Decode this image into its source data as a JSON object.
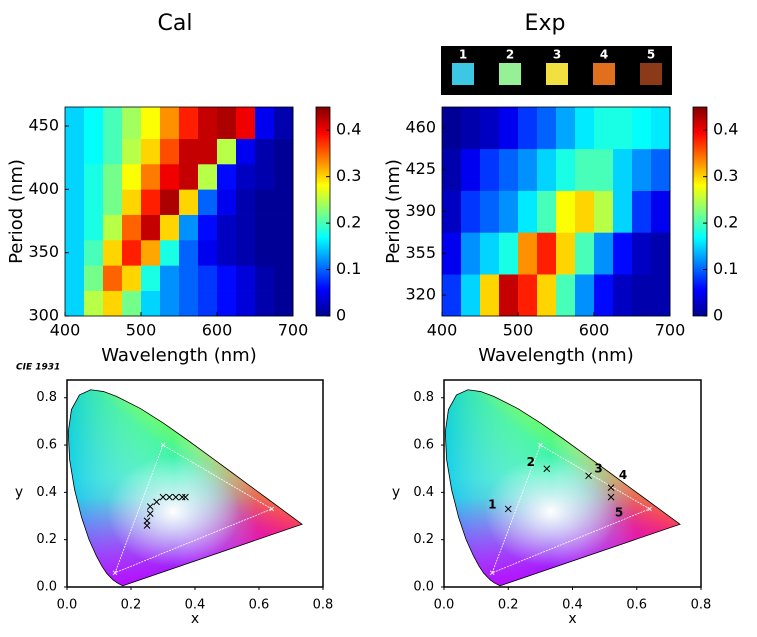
{
  "chart_data": [
    {
      "type": "heatmap",
      "title": "Cal",
      "xlabel": "Wavelength (nm)",
      "ylabel": "Period (nm)",
      "x_edges": [
        400,
        425,
        450,
        475,
        500,
        525,
        550,
        575,
        600,
        625,
        650,
        675,
        700
      ],
      "y_edges": [
        300,
        320,
        340,
        360,
        380,
        400,
        420,
        440,
        465
      ],
      "values": [
        [
          0.15,
          0.25,
          0.3,
          0.22,
          0.15,
          0.12,
          0.1,
          0.08,
          0.06,
          0.04,
          0.02,
          0.01
        ],
        [
          0.15,
          0.22,
          0.35,
          0.3,
          0.18,
          0.12,
          0.1,
          0.08,
          0.06,
          0.04,
          0.02,
          0.01
        ],
        [
          0.15,
          0.2,
          0.3,
          0.38,
          0.32,
          0.18,
          0.1,
          0.05,
          0.03,
          0.02,
          0.01,
          0.01
        ],
        [
          0.15,
          0.18,
          0.25,
          0.35,
          0.42,
          0.3,
          0.12,
          0.06,
          0.03,
          0.02,
          0.01,
          0.01
        ],
        [
          0.15,
          0.18,
          0.22,
          0.3,
          0.38,
          0.43,
          0.3,
          0.1,
          0.05,
          0.02,
          0.01,
          0.01
        ],
        [
          0.15,
          0.18,
          0.22,
          0.28,
          0.34,
          0.4,
          0.42,
          0.25,
          0.06,
          0.03,
          0.02,
          0.01
        ],
        [
          0.15,
          0.17,
          0.2,
          0.25,
          0.3,
          0.36,
          0.42,
          0.42,
          0.25,
          0.05,
          0.02,
          0.01
        ],
        [
          0.15,
          0.17,
          0.2,
          0.24,
          0.28,
          0.33,
          0.38,
          0.42,
          0.43,
          0.4,
          0.05,
          0.02
        ]
      ],
      "xlim": [
        400,
        700
      ],
      "ylim": [
        300,
        465
      ],
      "xticks": [
        400,
        500,
        600,
        700
      ],
      "yticks": [
        300,
        350,
        400,
        450
      ],
      "clim": [
        0,
        0.45
      ],
      "colorbar_ticks": [
        0,
        0.1,
        0.2,
        0.3,
        0.4
      ],
      "colormap": "jet"
    },
    {
      "type": "heatmap",
      "title": "Exp",
      "xlabel": "Wavelength (nm)",
      "ylabel": "Period (nm)",
      "x_edges": [
        400,
        425,
        450,
        475,
        500,
        525,
        550,
        575,
        600,
        625,
        650,
        675,
        700
      ],
      "y_edges": [
        302.5,
        337.5,
        372.5,
        407.5,
        442.5,
        477.5
      ],
      "values": [
        [
          0.08,
          0.15,
          0.3,
          0.42,
          0.38,
          0.3,
          0.2,
          0.12,
          0.06,
          0.03,
          0.02,
          0.02
        ],
        [
          0.05,
          0.12,
          0.15,
          0.18,
          0.33,
          0.38,
          0.3,
          0.2,
          0.12,
          0.06,
          0.03,
          0.02
        ],
        [
          0.03,
          0.08,
          0.1,
          0.12,
          0.16,
          0.2,
          0.28,
          0.3,
          0.25,
          0.15,
          0.08,
          0.05
        ],
        [
          0.02,
          0.05,
          0.08,
          0.1,
          0.12,
          0.15,
          0.18,
          0.2,
          0.2,
          0.15,
          0.12,
          0.1
        ],
        [
          0.01,
          0.02,
          0.03,
          0.05,
          0.08,
          0.1,
          0.13,
          0.16,
          0.18,
          0.18,
          0.17,
          0.16
        ]
      ],
      "xlim": [
        400,
        700
      ],
      "ylim": [
        302.5,
        477.5
      ],
      "xticks": [
        400,
        500,
        600,
        700
      ],
      "yticks": [
        320,
        355,
        390,
        425,
        460
      ],
      "clim": [
        0,
        0.45
      ],
      "colorbar_ticks": [
        0,
        0.1,
        0.2,
        0.3,
        0.4
      ],
      "colormap": "jet",
      "samples": {
        "labels": [
          "1",
          "2",
          "3",
          "4",
          "5"
        ],
        "colors": [
          "#3cc8e4",
          "#96f096",
          "#f2e040",
          "#e0701e",
          "#8a3a18"
        ]
      }
    },
    {
      "type": "scatter",
      "annotation": "CIE 1931",
      "xlabel": "x",
      "ylabel": "y",
      "x": [
        0.25,
        0.25,
        0.26,
        0.26,
        0.28,
        0.3,
        0.32,
        0.34,
        0.36,
        0.37
      ],
      "y": [
        0.26,
        0.28,
        0.31,
        0.34,
        0.36,
        0.38,
        0.38,
        0.38,
        0.38,
        0.38
      ],
      "xlim": [
        0,
        0.8
      ],
      "ylim": [
        0,
        0.875
      ],
      "xticks": [
        {
          "value": 0,
          "label": "0.0"
        },
        0.2,
        0.4,
        0.6,
        0.8
      ],
      "yticks": [
        {
          "value": 0,
          "label": "0.0"
        },
        0.2,
        0.4,
        0.6,
        0.8
      ]
    },
    {
      "type": "scatter",
      "xlabel": "x",
      "ylabel": "y",
      "x": [
        0.2,
        0.32,
        0.45,
        0.52,
        0.52
      ],
      "y": [
        0.33,
        0.5,
        0.47,
        0.42,
        0.38
      ],
      "point_labels": [
        "1",
        "2",
        "3",
        "4",
        "5"
      ],
      "xlim": [
        0,
        0.8
      ],
      "ylim": [
        0,
        0.875
      ],
      "xticks": [
        {
          "value": 0,
          "label": "0.0"
        },
        0.2,
        0.4,
        0.6,
        0.8
      ],
      "yticks": [
        {
          "value": 0,
          "label": "0.0"
        },
        0.2,
        0.4,
        0.6,
        0.8
      ]
    }
  ]
}
